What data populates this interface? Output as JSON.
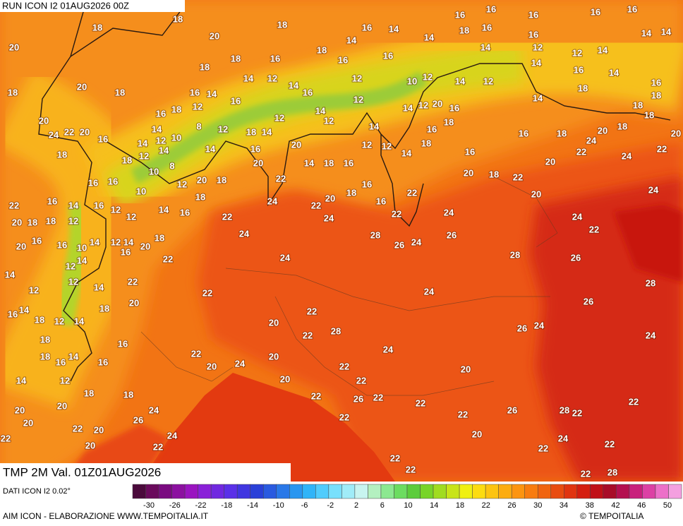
{
  "header": {
    "run": "RUN ICON I2 01AUG2026 00Z",
    "title": "TMP 2M Val. 01Z01AUG2026"
  },
  "footer": {
    "source": "DATI ICON I2 0.02°",
    "credit": "AIM ICON - ELABORAZIONE WWW.TEMPOITALIA.IT",
    "copyright": "© TEMPOITALIA"
  },
  "legend": {
    "ticks": [
      -30,
      -26,
      -22,
      -18,
      -14,
      -10,
      -6,
      -2,
      2,
      6,
      10,
      14,
      18,
      22,
      26,
      30,
      34,
      38,
      42,
      46,
      50
    ],
    "colors": [
      "#4b0a3c",
      "#6a0a5c",
      "#7a0a80",
      "#8c10a0",
      "#9a14c0",
      "#8a20d8",
      "#7028e0",
      "#5a30e8",
      "#4036e0",
      "#2a40d8",
      "#2a5ae0",
      "#2a78e8",
      "#2a96f0",
      "#30b4f8",
      "#50ccfc",
      "#78e0fc",
      "#a0ecf8",
      "#c8f4f0",
      "#b4f0c0",
      "#8ce890",
      "#6cdc60",
      "#5ccc3c",
      "#78d428",
      "#a0dc20",
      "#c8e418",
      "#f0f010",
      "#fcdc10",
      "#fcc410",
      "#fcac10",
      "#fc9410",
      "#f87c10",
      "#f06410",
      "#e84c10",
      "#e03410",
      "#d41e10",
      "#c01018",
      "#a80c28",
      "#b41050",
      "#c8207c",
      "#dc40a4",
      "#ec70c8",
      "#f4a0e0"
    ]
  },
  "map": {
    "labels": [
      "18",
      "18",
      "20",
      "20",
      "18",
      "18",
      "18",
      "20",
      "18",
      "18",
      "14",
      "12",
      "16",
      "18",
      "16",
      "14",
      "16",
      "14",
      "16",
      "14",
      "18",
      "16",
      "16",
      "16",
      "16",
      "16",
      "16",
      "16",
      "14",
      "14",
      "14",
      "12",
      "12",
      "14",
      "14",
      "16",
      "14",
      "16",
      "18",
      "18",
      "14",
      "12",
      "14",
      "12",
      "10",
      "12",
      "12",
      "12",
      "14",
      "14",
      "16",
      "12",
      "14",
      "18",
      "16",
      "14",
      "16",
      "12",
      "18",
      "16",
      "14",
      "10",
      "12",
      "14",
      "12",
      "14",
      "18",
      "10",
      "8",
      "8",
      "12",
      "14",
      "20",
      "18",
      "12",
      "10",
      "16",
      "16",
      "16",
      "20",
      "24",
      "22",
      "20",
      "18",
      "22",
      "16",
      "14",
      "16",
      "12",
      "12",
      "14",
      "16",
      "18",
      "20",
      "18",
      "18",
      "12",
      "20",
      "16",
      "16",
      "10",
      "14",
      "12",
      "14",
      "20",
      "18",
      "16",
      "12",
      "14",
      "14",
      "12",
      "14",
      "12",
      "22",
      "20",
      "18",
      "22",
      "22",
      "22",
      "24",
      "24",
      "22",
      "24",
      "20",
      "14",
      "18",
      "16",
      "16",
      "20",
      "22",
      "20",
      "24",
      "18",
      "16",
      "16",
      "12",
      "12",
      "14",
      "14",
      "18",
      "14",
      "12",
      "20",
      "16",
      "16",
      "18",
      "16",
      "20",
      "18",
      "22",
      "16",
      "18",
      "20",
      "22",
      "24",
      "20",
      "18",
      "18",
      "18",
      "20",
      "22",
      "24",
      "24",
      "24",
      "22",
      "20",
      "22",
      "22",
      "24",
      "28",
      "26",
      "24",
      "26",
      "28",
      "26",
      "24",
      "22",
      "20",
      "22",
      "28",
      "26",
      "28",
      "24",
      "26",
      "24",
      "24",
      "20",
      "16",
      "16",
      "18",
      "16",
      "14",
      "18",
      "12",
      "14",
      "18",
      "14",
      "12",
      "14",
      "16",
      "18",
      "18",
      "20",
      "20",
      "22",
      "20",
      "22",
      "24",
      "26",
      "24",
      "22",
      "20",
      "20",
      "22",
      "20",
      "24",
      "20",
      "20",
      "22",
      "22",
      "22",
      "26",
      "22",
      "22",
      "22",
      "22",
      "26",
      "28",
      "22",
      "22",
      "20",
      "22",
      "24",
      "22",
      "22",
      "22",
      "22",
      "28"
    ]
  }
}
